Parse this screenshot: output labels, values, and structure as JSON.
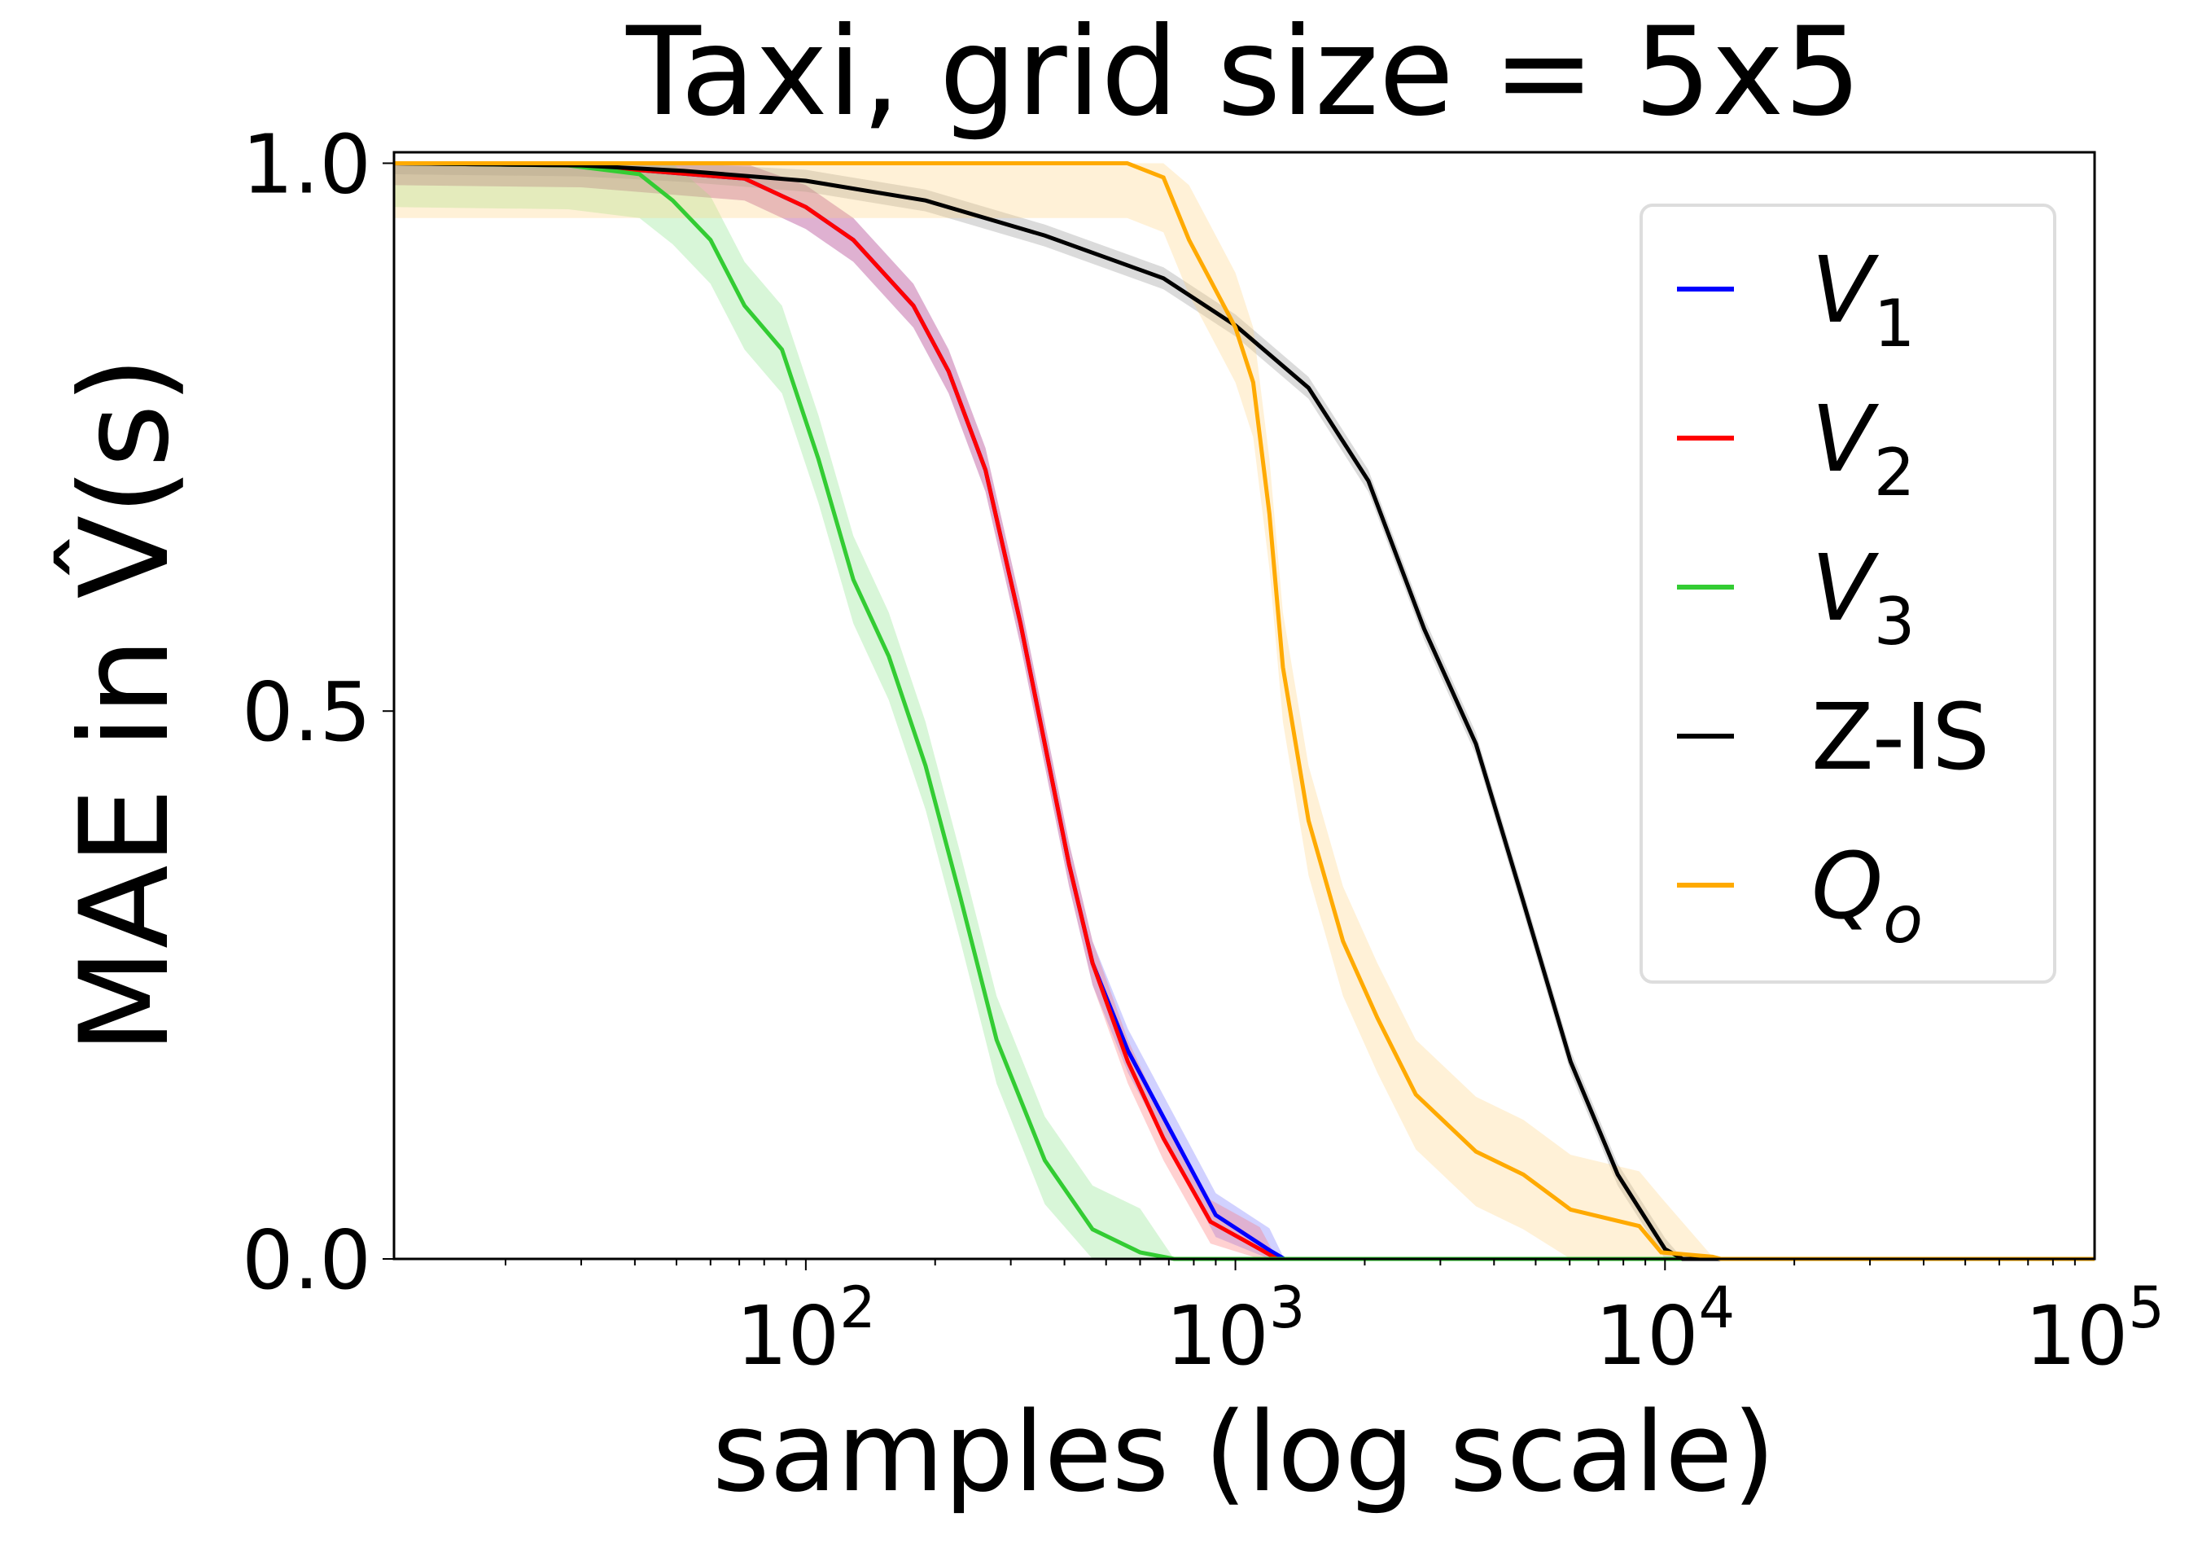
{
  "chart_data": {
    "type": "line",
    "title": "Taxi, grid size = 5x5",
    "xlabel": "samples (log scale)",
    "ylabel": "MAE in V̂(s)",
    "xscale": "log",
    "xlim": [
      11,
      100000
    ],
    "ylim": [
      0,
      1.01
    ],
    "grid": false,
    "legend_position": "upper right",
    "x_ticks": [
      {
        "value": 100,
        "base": "10",
        "exp": "2"
      },
      {
        "value": 1000,
        "base": "10",
        "exp": "3"
      },
      {
        "value": 10000,
        "base": "10",
        "exp": "4"
      },
      {
        "value": 100000,
        "base": "10",
        "exp": "5"
      }
    ],
    "y_ticks": [
      {
        "value": 0,
        "label": "0.0"
      },
      {
        "value": 0.5,
        "label": "0.5"
      },
      {
        "value": 1.0,
        "label": "1.0"
      }
    ],
    "series": [
      {
        "name": "V",
        "sub": "1",
        "italic": true,
        "color": "#0000ff",
        "band_color": "#6666ff",
        "band": 0.02,
        "x": [
          11,
          30,
          72,
          100,
          129,
          178,
          215,
          262,
          316,
          360,
          410,
          465,
          562,
          700,
          900,
          1200,
          1300,
          100000
        ],
        "y": [
          1.0,
          0.998,
          0.986,
          0.96,
          0.93,
          0.87,
          0.81,
          0.72,
          0.58,
          0.47,
          0.36,
          0.27,
          0.19,
          0.12,
          0.04,
          0.008,
          0.0,
          0.0
        ]
      },
      {
        "name": "V",
        "sub": "2",
        "italic": true,
        "color": "#ff0000",
        "band_color": "#ff6666",
        "band": 0.02,
        "x": [
          11,
          30,
          72,
          100,
          129,
          178,
          215,
          262,
          316,
          360,
          410,
          465,
          562,
          680,
          875,
          1140,
          1250,
          100000
        ],
        "y": [
          1.0,
          0.998,
          0.986,
          0.96,
          0.93,
          0.87,
          0.81,
          0.72,
          0.58,
          0.47,
          0.36,
          0.27,
          0.18,
          0.11,
          0.034,
          0.009,
          0.0,
          0.0
        ]
      },
      {
        "name": "V",
        "sub": "3",
        "italic": true,
        "color": "#33cc33",
        "band_color": "#7ee07e",
        "band": 0.04,
        "x": [
          11,
          28,
          41,
          49,
          60,
          72,
          88,
          107,
          129,
          156,
          190,
          229,
          278,
          360,
          465,
          600,
          720,
          100000
        ],
        "y": [
          1.0,
          0.998,
          0.99,
          0.966,
          0.93,
          0.87,
          0.83,
          0.73,
          0.62,
          0.55,
          0.45,
          0.33,
          0.2,
          0.09,
          0.027,
          0.006,
          0.0,
          0.0
        ]
      },
      {
        "name": "Z-IS",
        "sub": "",
        "italic": false,
        "color": "#000000",
        "band_color": "#888888",
        "band": 0.01,
        "x": [
          11,
          30,
          52,
          100,
          190,
          360,
          680,
          1000,
          1480,
          2040,
          2750,
          3630,
          4680,
          6030,
          7760,
          10000,
          11000,
          100000
        ],
        "y": [
          1.0,
          0.998,
          0.993,
          0.984,
          0.966,
          0.934,
          0.895,
          0.852,
          0.795,
          0.71,
          0.575,
          0.47,
          0.326,
          0.18,
          0.077,
          0.009,
          0.0,
          0.0
        ]
      },
      {
        "name": "Q",
        "sub": "o",
        "italic": true,
        "color": "#ffaa00",
        "band_color": "#ffd27a",
        "band": 0.05,
        "x": [
          11,
          560,
          680,
          780,
          870,
          1000,
          1100,
          1200,
          1290,
          1480,
          1780,
          2140,
          2630,
          3630,
          4680,
          6030,
          8710,
          9800,
          12900,
          13500,
          100000
        ],
        "y": [
          1.0,
          1.0,
          0.987,
          0.93,
          0.895,
          0.85,
          0.8,
          0.68,
          0.54,
          0.4,
          0.29,
          0.22,
          0.15,
          0.098,
          0.077,
          0.045,
          0.03,
          0.006,
          0.002,
          0.0,
          0.0
        ]
      }
    ]
  }
}
